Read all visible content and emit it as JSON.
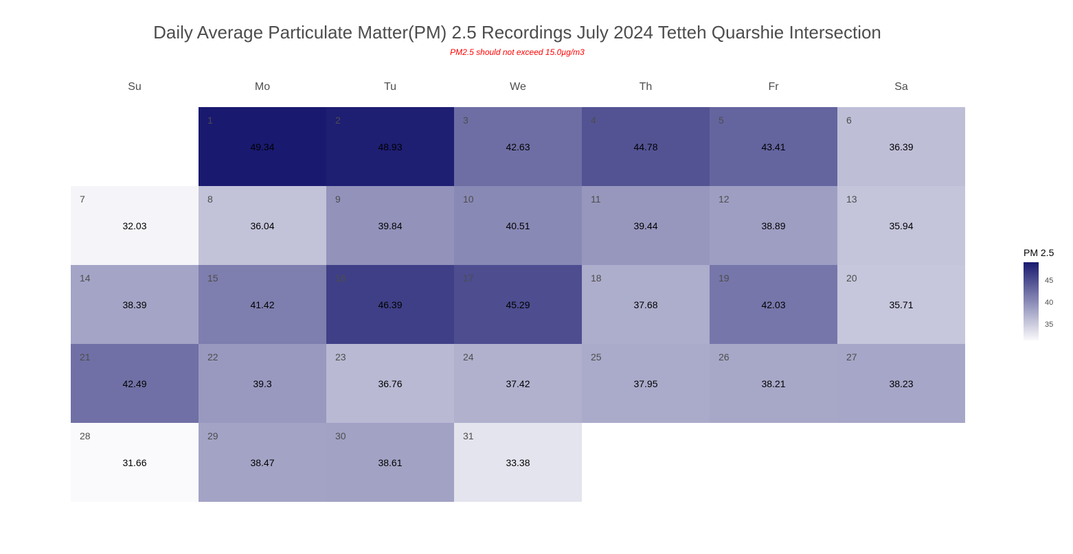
{
  "title": "Daily Average Particulate Matter(PM) 2.5 Recordings July 2024 Tetteh Quarshie Intersection",
  "subtitle": "PM2.5 should not exceed 15.0µg/m3",
  "chart_data": {
    "type": "heatmap",
    "layout": "calendar",
    "weekdays": [
      "Su",
      "Mo",
      "Tu",
      "We",
      "Th",
      "Fr",
      "Sa"
    ],
    "first_weekday_index": 1,
    "days": [
      1,
      2,
      3,
      4,
      5,
      6,
      7,
      8,
      9,
      10,
      11,
      12,
      13,
      14,
      15,
      16,
      17,
      18,
      19,
      20,
      21,
      22,
      23,
      24,
      25,
      26,
      27,
      28,
      29,
      30,
      31
    ],
    "values": [
      "49.34",
      "48.93",
      "42.63",
      "44.78",
      "43.41",
      "36.39",
      "32.03",
      "36.04",
      "39.84",
      "40.51",
      "39.44",
      "38.89",
      "35.94",
      "38.39",
      "41.42",
      "46.39",
      "45.29",
      "37.68",
      "42.03",
      "35.71",
      "42.49",
      "39.3",
      "36.76",
      "37.42",
      "37.95",
      "38.21",
      "38.23",
      "31.66",
      "38.47",
      "38.61",
      "33.38"
    ],
    "legend": {
      "title": "PM 2.5",
      "ticks": [
        "35",
        "40",
        "45"
      ],
      "position": "right"
    },
    "color_scale": {
      "low": "#ffffff",
      "high": "#191970"
    }
  }
}
